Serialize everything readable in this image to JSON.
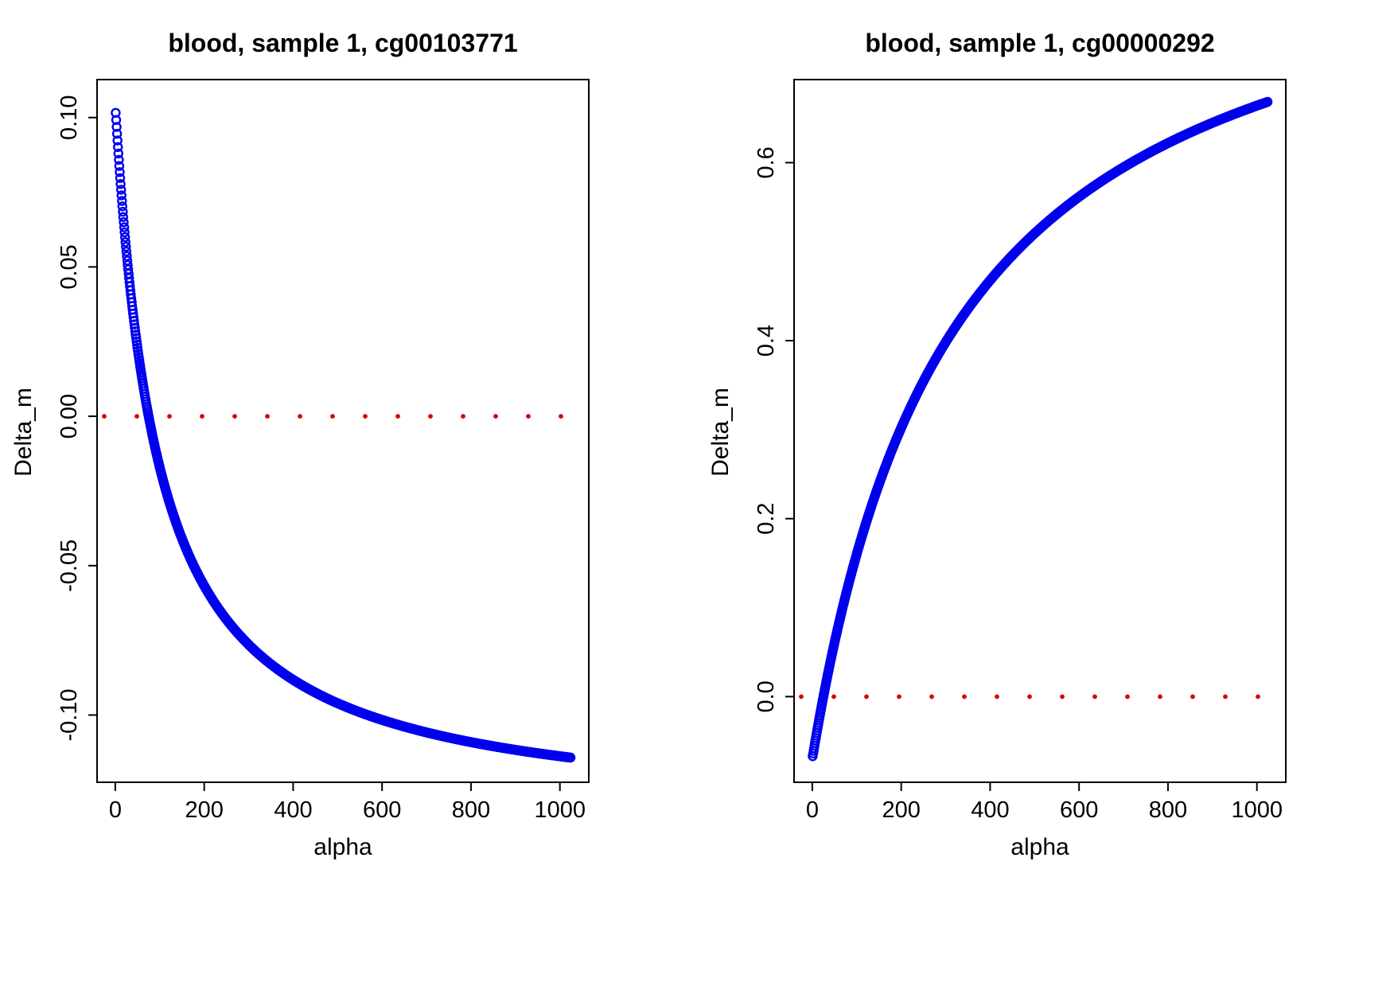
{
  "page": {
    "background": "#ffffff"
  },
  "chart_data": [
    {
      "type": "scatter",
      "title": "blood, sample 1, cg00103771",
      "xlabel": "alpha",
      "ylabel": "Delta_m",
      "xlim": [
        0,
        1024
      ],
      "ylim": [
        -0.1138,
        0.104
      ],
      "xticks": [
        0,
        200,
        400,
        600,
        800,
        1000
      ],
      "xtick_labels": [
        "0",
        "200",
        "400",
        "600",
        "800",
        "1000"
      ],
      "yticks": [
        -0.1,
        -0.05,
        0.0,
        0.05,
        0.1
      ],
      "ytick_labels": [
        "-0.10",
        "-0.05",
        "0.00",
        "0.05",
        "0.10"
      ],
      "grid": false,
      "legend": "none",
      "series": [
        {
          "name": "Delta_m vs alpha",
          "color": "#0000EE",
          "marker": "open-circle",
          "x": [
            0,
            50,
            100,
            150,
            200,
            250,
            300,
            350,
            400,
            450,
            500,
            550,
            600,
            650,
            700,
            750,
            800,
            850,
            900,
            950,
            1000
          ],
          "y": [
            0.104,
            0.0229,
            -0.0171,
            -0.0409,
            -0.0567,
            -0.068,
            -0.0764,
            -0.083,
            -0.0882,
            -0.0925,
            -0.096,
            -0.099,
            -0.1016,
            -0.1039,
            -0.1058,
            -0.1075,
            -0.1091,
            -0.1104,
            -0.1117,
            -0.1128,
            -0.1138
          ]
        }
      ],
      "model": {
        "type": "rational",
        "p": 0.104,
        "q": -0.0013867,
        "r": 0.010272,
        "x_min": 1,
        "x_max": 1024,
        "step": 1
      },
      "zero_line": {
        "y": 0.0,
        "color": "#DD0000",
        "style": "dotted"
      }
    },
    {
      "type": "scatter",
      "title": "blood, sample 1, cg00000292",
      "xlabel": "alpha",
      "ylabel": "Delta_m",
      "xlim": [
        0,
        1024
      ],
      "ylim": [
        -0.067,
        0.6641
      ],
      "xticks": [
        0,
        200,
        400,
        600,
        800,
        1000
      ],
      "xtick_labels": [
        "0",
        "200",
        "400",
        "600",
        "800",
        "1000"
      ],
      "yticks": [
        0.0,
        0.2,
        0.4,
        0.6
      ],
      "ytick_labels": [
        "0.0",
        "0.2",
        "0.4",
        "0.6"
      ],
      "grid": false,
      "legend": "none",
      "series": [
        {
          "name": "Delta_m vs alpha",
          "color": "#0000EE",
          "marker": "open-circle",
          "x": [
            0,
            50,
            100,
            150,
            200,
            250,
            300,
            350,
            400,
            450,
            500,
            550,
            600,
            650,
            700,
            750,
            800,
            850,
            900,
            950,
            1000
          ],
          "y": [
            -0.07,
            0.0606,
            0.1602,
            0.2386,
            0.3021,
            0.3544,
            0.3983,
            0.4356,
            0.4678,
            0.4958,
            0.5204,
            0.5422,
            0.5616,
            0.579,
            0.5948,
            0.609,
            0.622,
            0.6338,
            0.6447,
            0.6548,
            0.6641
          ]
        }
      ],
      "model": {
        "type": "rational",
        "p": -0.07,
        "q": 0.0028,
        "r": 0.003111,
        "x_min": 1,
        "x_max": 1024,
        "step": 1
      },
      "zero_line": {
        "y": 0.0,
        "color": "#DD0000",
        "style": "dotted"
      }
    }
  ]
}
